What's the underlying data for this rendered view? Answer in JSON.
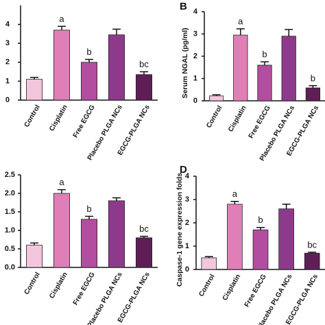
{
  "chart_data": [
    {
      "type": "bar",
      "categories": [
        "Control",
        "Cisplatin",
        "Free EGCG",
        "Placebo PLGA NCs",
        "EGCG-PLGA NCs"
      ],
      "values": [
        1.1,
        3.7,
        2.0,
        3.45,
        1.35
      ],
      "errors": [
        0.1,
        0.2,
        0.15,
        0.3,
        0.15
      ],
      "letters": [
        null,
        "a",
        "b",
        null,
        "bc"
      ],
      "colors": [
        "#f2c6dd",
        "#e07fb7",
        "#b34da0",
        "#8e3a8c",
        "#5f1f56"
      ],
      "ylim": [
        0,
        5
      ],
      "yticks": [
        0,
        1,
        2,
        3,
        4
      ]
    },
    {
      "type": "bar",
      "panel_label": "B",
      "ylabel": "Serum NGAL (pg/ml)",
      "categories": [
        "Control",
        "Cisplatin",
        "Free EGCG",
        "Placebo PLGA NCs",
        "EGCG-PLGA NCs"
      ],
      "values": [
        0.22,
        2.95,
        1.6,
        2.9,
        0.58
      ],
      "errors": [
        0.05,
        0.28,
        0.15,
        0.3,
        0.1
      ],
      "letters": [
        null,
        "a",
        "b",
        null,
        "b"
      ],
      "colors": [
        "#f2c6dd",
        "#e07fb7",
        "#b34da0",
        "#8e3a8c",
        "#5f1f56"
      ],
      "ylim": [
        0,
        4
      ],
      "yticks": [
        0,
        1,
        2,
        3,
        4
      ]
    },
    {
      "type": "bar",
      "categories": [
        "Control",
        "Cisplatin",
        "Free EGCG",
        "Placebo PLGA NCs",
        "EGCG-PLGA NCs"
      ],
      "values": [
        0.6,
        2.0,
        1.3,
        1.8,
        0.8
      ],
      "errors": [
        0.06,
        0.1,
        0.08,
        0.08,
        0.04
      ],
      "letters": [
        null,
        "a",
        "b",
        null,
        "bc"
      ],
      "colors": [
        "#f2c6dd",
        "#e07fb7",
        "#b34da0",
        "#8e3a8c",
        "#5f1f56"
      ],
      "ylim": [
        0,
        2.5
      ],
      "yticks": [
        {
          "value": 0,
          "label": "0.0"
        },
        {
          "value": 0.5,
          "label": "0.5"
        },
        {
          "value": 1,
          "label": "1.0"
        },
        {
          "value": 1.5,
          "label": "1.5"
        },
        {
          "value": 2,
          "label": "2.0"
        },
        {
          "value": 2.5,
          "label": "2.5"
        }
      ]
    },
    {
      "type": "bar",
      "panel_label": "D",
      "ylabel": "Caspase-1 gene expression folds",
      "categories": [
        "Control",
        "Cisplatin",
        "Free EGCG",
        "Placebo PLGA NCs",
        "EGCG-PLGA NCs"
      ],
      "values": [
        0.5,
        2.8,
        1.7,
        2.6,
        0.7
      ],
      "errors": [
        0.05,
        0.12,
        0.1,
        0.2,
        0.04
      ],
      "letters": [
        null,
        "a",
        "b",
        null,
        "bc"
      ],
      "colors": [
        "#f2c6dd",
        "#e07fb7",
        "#b34da0",
        "#8e3a8c",
        "#5f1f56"
      ],
      "ylim": [
        0,
        4
      ],
      "yticks": [
        0,
        1,
        2,
        3,
        4
      ]
    }
  ]
}
